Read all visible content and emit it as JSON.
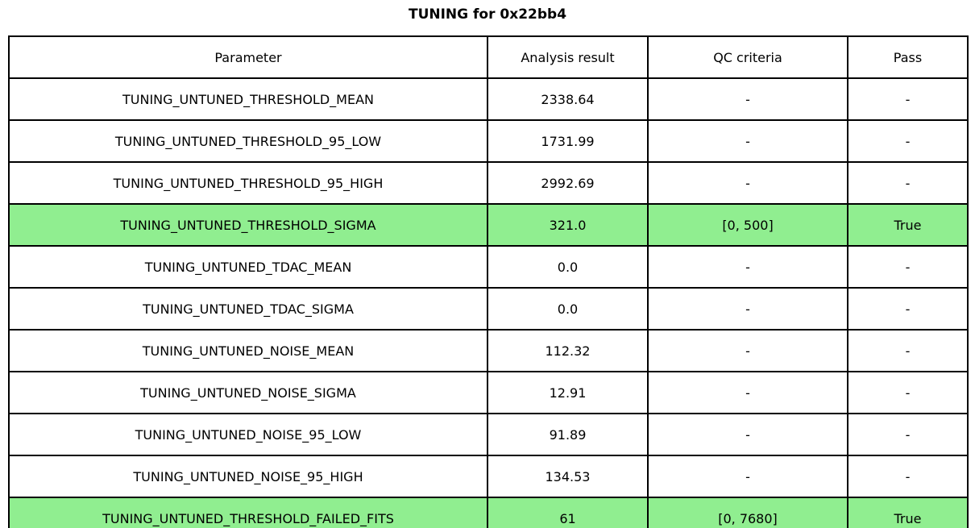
{
  "title": "TUNING for 0x22bb4",
  "chart_data": {
    "type": "table",
    "title": "TUNING for 0x22bb4",
    "columns": [
      "Parameter",
      "Analysis result",
      "QC criteria",
      "Pass"
    ],
    "rows": [
      {
        "parameter": "TUNING_UNTUNED_THRESHOLD_MEAN",
        "result": "2338.64",
        "qc": "-",
        "pass": "-",
        "highlight": false
      },
      {
        "parameter": "TUNING_UNTUNED_THRESHOLD_95_LOW",
        "result": "1731.99",
        "qc": "-",
        "pass": "-",
        "highlight": false
      },
      {
        "parameter": "TUNING_UNTUNED_THRESHOLD_95_HIGH",
        "result": "2992.69",
        "qc": "-",
        "pass": "-",
        "highlight": false
      },
      {
        "parameter": "TUNING_UNTUNED_THRESHOLD_SIGMA",
        "result": "321.0",
        "qc": "[0, 500]",
        "pass": "True",
        "highlight": true
      },
      {
        "parameter": "TUNING_UNTUNED_TDAC_MEAN",
        "result": "0.0",
        "qc": "-",
        "pass": "-",
        "highlight": false
      },
      {
        "parameter": "TUNING_UNTUNED_TDAC_SIGMA",
        "result": "0.0",
        "qc": "-",
        "pass": "-",
        "highlight": false
      },
      {
        "parameter": "TUNING_UNTUNED_NOISE_MEAN",
        "result": "112.32",
        "qc": "-",
        "pass": "-",
        "highlight": false
      },
      {
        "parameter": "TUNING_UNTUNED_NOISE_SIGMA",
        "result": "12.91",
        "qc": "-",
        "pass": "-",
        "highlight": false
      },
      {
        "parameter": "TUNING_UNTUNED_NOISE_95_LOW",
        "result": "91.89",
        "qc": "-",
        "pass": "-",
        "highlight": false
      },
      {
        "parameter": "TUNING_UNTUNED_NOISE_95_HIGH",
        "result": "134.53",
        "qc": "-",
        "pass": "-",
        "highlight": false
      },
      {
        "parameter": "TUNING_UNTUNED_THRESHOLD_FAILED_FITS",
        "result": "61",
        "qc": "[0, 7680]",
        "pass": "True",
        "highlight": true
      }
    ],
    "highlight_color": "#90EE90",
    "highlighted_rows": [
      3,
      10
    ],
    "layout": {
      "grid": "full-borders",
      "legend_position": "none"
    }
  }
}
